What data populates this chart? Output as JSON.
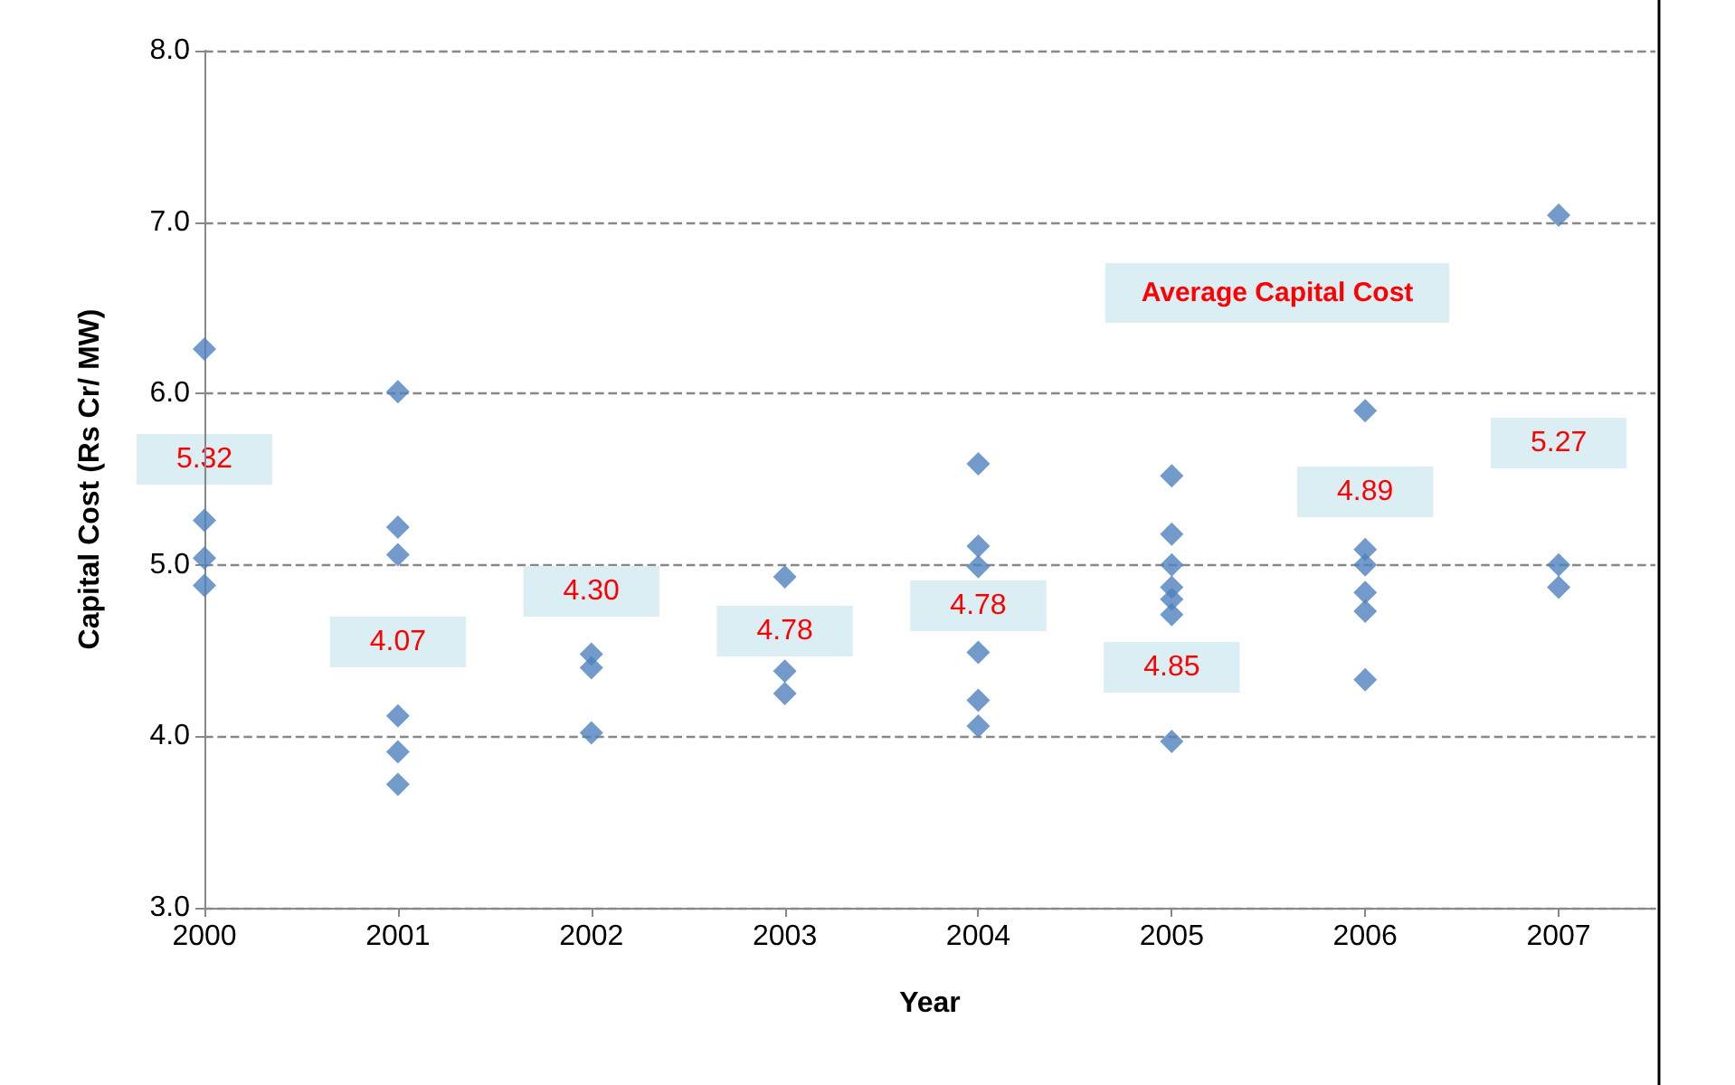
{
  "chart_data": {
    "type": "scatter",
    "xlabel": "Year",
    "ylabel": "Capital Cost (Rs Cr/ MW)",
    "xlim": [
      2000,
      2007.5
    ],
    "xticks": [
      2000,
      2001,
      2002,
      2003,
      2004,
      2005,
      2006,
      2007
    ],
    "ylim": [
      3,
      8
    ],
    "yticks": [
      {
        "value": 3,
        "label": "3.0"
      },
      {
        "value": 4,
        "label": "4.0"
      },
      {
        "value": 5,
        "label": "5.0"
      },
      {
        "value": 6,
        "label": "6.0"
      },
      {
        "value": 7,
        "label": "7.0"
      },
      {
        "value": 8,
        "label": "8.0"
      }
    ],
    "grid": "y",
    "marker": "diamond",
    "series": [
      {
        "color": "#4f81bd",
        "x": [
          2000,
          2000,
          2000,
          2000,
          2001,
          2001,
          2001,
          2001,
          2001,
          2001,
          2002,
          2002,
          2002,
          2003,
          2003,
          2003,
          2004,
          2004,
          2004,
          2004,
          2004,
          2004,
          2005,
          2005,
          2005,
          2005,
          2005,
          2005,
          2005,
          2006,
          2006,
          2006,
          2006,
          2006,
          2006,
          2007,
          2007,
          2007
        ],
        "values": [
          6.26,
          5.26,
          5.04,
          4.88,
          6.01,
          5.22,
          5.06,
          4.12,
          3.91,
          3.72,
          4.48,
          4.4,
          4.02,
          4.93,
          4.38,
          4.25,
          5.59,
          5.11,
          4.99,
          4.49,
          4.21,
          4.06,
          5.52,
          5.18,
          5.0,
          4.87,
          4.8,
          4.71,
          3.97,
          5.9,
          5.09,
          5.0,
          4.84,
          4.73,
          4.33,
          7.04,
          5.0,
          4.87
        ]
      }
    ],
    "annotations": [
      "Average Capital Cost",
      "5.32",
      "4.07",
      "4.30",
      "4.78",
      "4.78",
      "4.85",
      "4.89",
      "5.27"
    ]
  }
}
